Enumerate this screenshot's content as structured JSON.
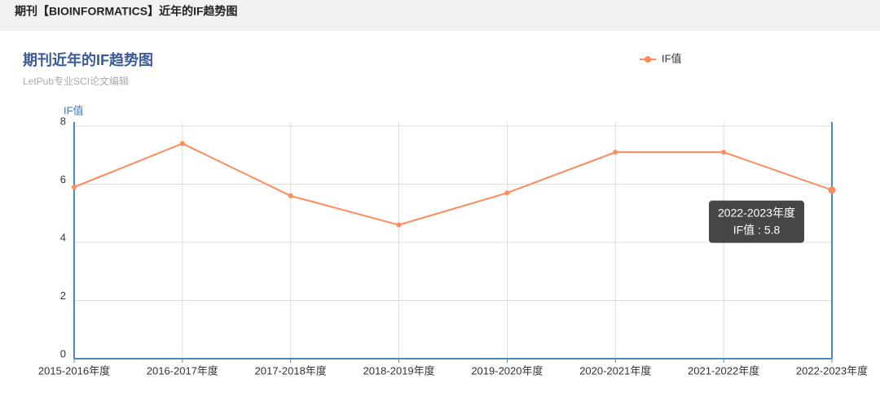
{
  "header": {
    "title": "期刊【BIOINFORMATICS】近年的IF趋势图"
  },
  "chart_data": {
    "type": "line",
    "title": "期刊近年的IF趋势图",
    "subtitle": "LetPub专业SCI论文编辑",
    "y_label": "IF值",
    "categories": [
      "2015-2016年度",
      "2016-2017年度",
      "2017-2018年度",
      "2018-2019年度",
      "2019-2020年度",
      "2020-2021年度",
      "2021-2022年度",
      "2022-2023年度"
    ],
    "series": [
      {
        "name": "IF值",
        "color": "#ff8a5b",
        "values": [
          5.9,
          7.4,
          5.6,
          4.6,
          5.7,
          7.1,
          7.1,
          5.8
        ]
      }
    ],
    "ylim": [
      0,
      8
    ],
    "yticks": [
      0,
      2,
      4,
      6,
      8
    ],
    "grid": true,
    "tooltip": {
      "title": "2022-2023年度",
      "text": "IF值 : 5.8"
    }
  }
}
